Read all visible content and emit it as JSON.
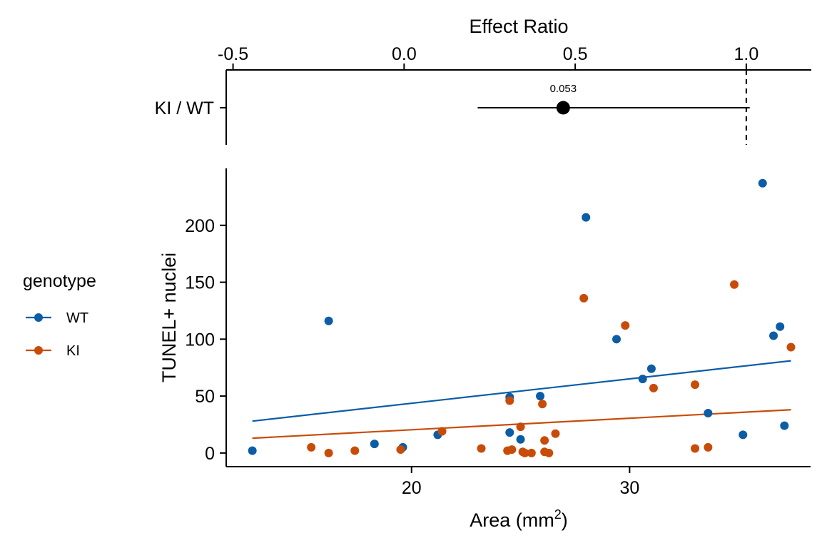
{
  "chart_data": [
    {
      "type": "forest",
      "title": "",
      "xlabel": "Effect Ratio",
      "xlim": [
        -0.52,
        1.19
      ],
      "x_ticks": [
        "-0.5",
        "0.0",
        "0.5",
        "1.0"
      ],
      "x_tick_values": [
        -0.5,
        0.0,
        0.5,
        1.0
      ],
      "reference_line": 1.0,
      "rows": [
        {
          "label": "KI / WT",
          "estimate": 0.465,
          "lower": 0.215,
          "upper": 1.01,
          "p_label": "0.053"
        }
      ]
    },
    {
      "type": "scatter",
      "title": "",
      "xlabel_prefix": "Area (mm",
      "xlabel_sup": "2",
      "xlabel_suffix": ")",
      "ylabel": "TUNEL+ nuclei",
      "xlim": [
        11.5,
        38.3
      ],
      "ylim": [
        -12,
        250
      ],
      "x_ticks": [
        "20",
        "30"
      ],
      "x_tick_values": [
        20,
        30
      ],
      "y_ticks": [
        "0",
        "50",
        "100",
        "150",
        "200"
      ],
      "y_tick_values": [
        0,
        50,
        100,
        150,
        200
      ],
      "legend": {
        "title": "genotype",
        "position": "left"
      },
      "series": [
        {
          "name": "WT",
          "color": "#0C5DA5",
          "points": [
            [
              12.7,
              2
            ],
            [
              16.2,
              116
            ],
            [
              18.3,
              8
            ],
            [
              19.6,
              5
            ],
            [
              21.2,
              16
            ],
            [
              24.5,
              49
            ],
            [
              24.5,
              18
            ],
            [
              25.0,
              12
            ],
            [
              25.9,
              50
            ],
            [
              28.0,
              207
            ],
            [
              29.4,
              100
            ],
            [
              30.6,
              65
            ],
            [
              31.0,
              74
            ],
            [
              33.6,
              35
            ],
            [
              35.2,
              16
            ],
            [
              36.1,
              237
            ],
            [
              36.6,
              103
            ],
            [
              36.9,
              111
            ],
            [
              37.1,
              24
            ]
          ],
          "trend": {
            "x": [
              12.7,
              37.4
            ],
            "y": [
              28,
              81
            ]
          }
        },
        {
          "name": "KI",
          "color": "#C84C09",
          "points": [
            [
              15.4,
              5
            ],
            [
              16.2,
              0
            ],
            [
              17.4,
              2
            ],
            [
              19.5,
              3
            ],
            [
              21.4,
              19
            ],
            [
              23.2,
              4
            ],
            [
              24.4,
              2
            ],
            [
              24.5,
              46
            ],
            [
              24.6,
              3
            ],
            [
              25.0,
              23
            ],
            [
              25.1,
              1
            ],
            [
              25.2,
              0
            ],
            [
              25.5,
              0
            ],
            [
              26.0,
              43
            ],
            [
              26.1,
              11
            ],
            [
              26.1,
              1
            ],
            [
              26.3,
              0
            ],
            [
              26.6,
              17
            ],
            [
              27.9,
              136
            ],
            [
              29.8,
              112
            ],
            [
              31.1,
              57
            ],
            [
              33.0,
              60
            ],
            [
              33.0,
              4
            ],
            [
              33.6,
              5
            ],
            [
              34.8,
              148
            ],
            [
              37.4,
              93
            ]
          ],
          "trend": {
            "x": [
              12.7,
              37.4
            ],
            "y": [
              13,
              38
            ]
          }
        }
      ]
    }
  ]
}
